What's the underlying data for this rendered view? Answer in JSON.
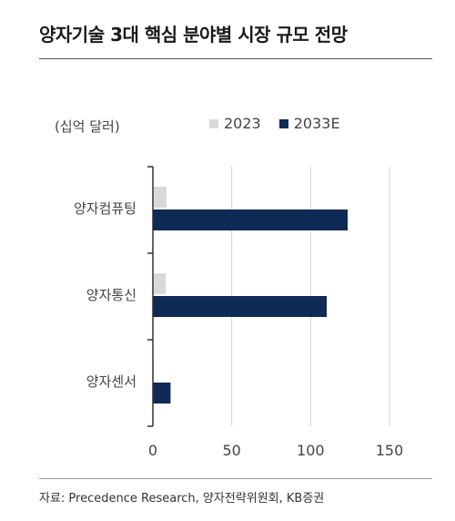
{
  "title": "양자기술 3대 핵심 분야별 시장 규모 전망",
  "unit_label": "(십억 달러)",
  "source": "자료: Precedence Research, 양자전략위원회, KB증권",
  "colors": {
    "s2023": "#d9d9d9",
    "s2033": "#0e2a55",
    "grid": "#d0d0d0",
    "axis": "#333333"
  },
  "chart_data": {
    "type": "bar",
    "orientation": "horizontal",
    "categories": [
      "양자컴퓨팅",
      "양자통신",
      "양자센서"
    ],
    "series": [
      {
        "name": "2023",
        "values": [
          8.6,
          8.2,
          0.6
        ]
      },
      {
        "name": "2033E",
        "values": [
          123.5,
          110.2,
          11.2
        ]
      }
    ],
    "xlim": [
      0,
      150
    ],
    "xticks": [
      "0",
      "50",
      "100",
      "150"
    ],
    "xtick_values": [
      0,
      50,
      100,
      150
    ],
    "grid": true,
    "legend": "top"
  }
}
